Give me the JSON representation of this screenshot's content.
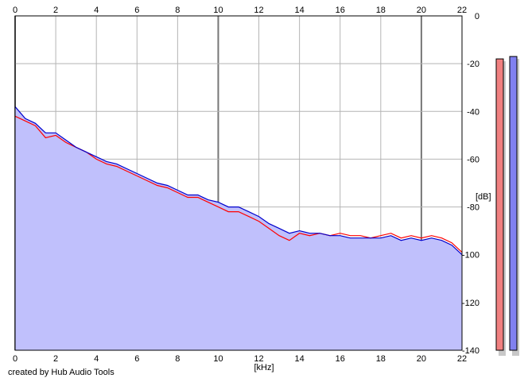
{
  "credit": "created by Hub Audio Tools",
  "chart_data": {
    "type": "area",
    "xlabel": "[kHz]",
    "ylabel": "[dB]",
    "xlim": [
      0,
      22
    ],
    "ylim": [
      -140,
      0
    ],
    "x_ticks": [
      0,
      2,
      4,
      6,
      8,
      10,
      12,
      14,
      16,
      18,
      20,
      22
    ],
    "y_ticks": [
      0,
      -20,
      -40,
      -60,
      -80,
      -100,
      -120,
      -140
    ],
    "grid": true,
    "fill_color": "#c0c0fc",
    "series": [
      {
        "color": "#ff0000",
        "x": [
          0,
          0.5,
          1,
          1.5,
          2,
          2.5,
          3,
          3.5,
          4,
          4.5,
          5,
          5.5,
          6,
          6.5,
          7,
          7.5,
          8,
          8.5,
          9,
          9.5,
          10,
          10.5,
          11,
          11.5,
          12,
          12.5,
          13,
          13.5,
          14,
          14.5,
          15,
          15.5,
          16,
          16.5,
          17,
          17.5,
          18,
          18.5,
          19,
          19.5,
          20,
          20.5,
          21,
          21.5,
          22
        ],
        "y": [
          -42,
          -44,
          -46,
          -51,
          -50,
          -53,
          -55,
          -57,
          -60,
          -62,
          -63,
          -65,
          -67,
          -69,
          -71,
          -72,
          -74,
          -76,
          -76,
          -78,
          -80,
          -82,
          -82,
          -84,
          -86,
          -89,
          -92,
          -94,
          -91,
          -92,
          -91,
          -92,
          -91,
          -92,
          -92,
          -93,
          -92,
          -91,
          -93,
          -92,
          -93,
          -92,
          -93,
          -95,
          -99
        ]
      },
      {
        "color": "#0000cc",
        "x": [
          0,
          0.5,
          1,
          1.5,
          2,
          2.5,
          3,
          3.5,
          4,
          4.5,
          5,
          5.5,
          6,
          6.5,
          7,
          7.5,
          8,
          8.5,
          9,
          9.5,
          10,
          10.5,
          11,
          11.5,
          12,
          12.5,
          13,
          13.5,
          14,
          14.5,
          15,
          15.5,
          16,
          16.5,
          17,
          17.5,
          18,
          18.5,
          19,
          19.5,
          20,
          20.5,
          21,
          21.5,
          22
        ],
        "y": [
          -38,
          -43,
          -45,
          -49,
          -49,
          -52,
          -55,
          -57,
          -59,
          -61,
          -62,
          -64,
          -66,
          -68,
          -70,
          -71,
          -73,
          -75,
          -75,
          -77,
          -78,
          -80,
          -80,
          -82,
          -84,
          -87,
          -89,
          -91,
          -90,
          -91,
          -91,
          -92,
          -92,
          -93,
          -93,
          -93,
          -93,
          -92,
          -94,
          -93,
          -94,
          -93,
          -94,
          -96,
          -100
        ]
      }
    ],
    "level_meters": [
      {
        "color": "#f08080",
        "value": -18
      },
      {
        "color": "#8080f0",
        "value": -17
      }
    ]
  }
}
